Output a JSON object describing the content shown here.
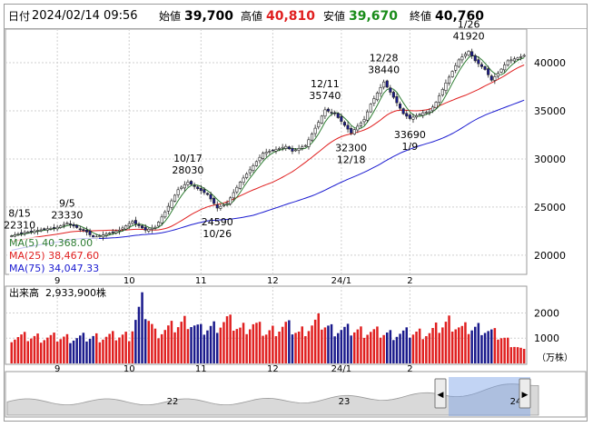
{
  "header": {
    "date_label": "日付",
    "datetime": "2024/02/14 09:56",
    "open_label": "始値",
    "open": "39,700",
    "high_label": "高値",
    "high": "40,810",
    "low_label": "安値",
    "low": "39,670",
    "close_label": "終値",
    "close": "40,760"
  },
  "colors": {
    "up_candle": "#ffffff",
    "down_candle": "#1a1a8c",
    "ma5": "#2e7d32",
    "ma25": "#e02020",
    "ma75": "#1a1ad0",
    "volume_up": "#e02020",
    "volume_down": "#1a1a8c",
    "high_value": "#e02020",
    "low_value": "#1a8c1a"
  },
  "chart_data": [
    {
      "type": "candlestick",
      "x_ticks": [
        "9",
        "10",
        "11",
        "12",
        "24/1",
        "2"
      ],
      "y_ticks": [
        "40000",
        "35000",
        "30000",
        "25000",
        "20000"
      ],
      "ylim": [
        18000,
        43500
      ],
      "legend": [
        {
          "name": "MA(5)",
          "value": "40,368.00"
        },
        {
          "name": "MA(25)",
          "value": "38,467.60"
        },
        {
          "name": "MA(75)",
          "value": "34,047.33"
        }
      ],
      "annotations": [
        {
          "text": "8/15",
          "value": "22310"
        },
        {
          "text": "9/5",
          "value": "23330"
        },
        {
          "text": "10/17",
          "value": "28030"
        },
        {
          "text": "10/26",
          "value": "24590"
        },
        {
          "text": "12/11",
          "value": "35740"
        },
        {
          "text": "12/18",
          "value": "32300"
        },
        {
          "text": "12/28",
          "value": "38440"
        },
        {
          "text": "1/9",
          "value": "33690"
        },
        {
          "text": "1/26",
          "value": "41920"
        }
      ],
      "anchors": [
        {
          "i": 0,
          "v": 22000
        },
        {
          "i": 3,
          "v": 22310
        },
        {
          "i": 14,
          "v": 22900
        },
        {
          "i": 17,
          "v": 23330
        },
        {
          "i": 23,
          "v": 22400
        },
        {
          "i": 25,
          "v": 21800
        },
        {
          "i": 33,
          "v": 22600
        },
        {
          "i": 37,
          "v": 23500
        },
        {
          "i": 41,
          "v": 22600
        },
        {
          "i": 44,
          "v": 22900
        },
        {
          "i": 47,
          "v": 24500
        },
        {
          "i": 51,
          "v": 26800
        },
        {
          "i": 54,
          "v": 27600
        },
        {
          "i": 57,
          "v": 26900
        },
        {
          "i": 60,
          "v": 26300
        },
        {
          "i": 63,
          "v": 24900
        },
        {
          "i": 66,
          "v": 25400
        },
        {
          "i": 70,
          "v": 27600
        },
        {
          "i": 74,
          "v": 29300
        },
        {
          "i": 77,
          "v": 30600
        },
        {
          "i": 80,
          "v": 30900
        },
        {
          "i": 84,
          "v": 31300
        },
        {
          "i": 86,
          "v": 30800
        },
        {
          "i": 90,
          "v": 31400
        },
        {
          "i": 94,
          "v": 33800
        },
        {
          "i": 96,
          "v": 35100
        },
        {
          "i": 99,
          "v": 34700
        },
        {
          "i": 102,
          "v": 33500
        },
        {
          "i": 104,
          "v": 32700
        },
        {
          "i": 108,
          "v": 34100
        },
        {
          "i": 110,
          "v": 35700
        },
        {
          "i": 114,
          "v": 38000
        },
        {
          "i": 117,
          "v": 36400
        },
        {
          "i": 120,
          "v": 34700
        },
        {
          "i": 122,
          "v": 34200
        },
        {
          "i": 126,
          "v": 34800
        },
        {
          "i": 128,
          "v": 34900
        },
        {
          "i": 130,
          "v": 35900
        },
        {
          "i": 133,
          "v": 37900
        },
        {
          "i": 137,
          "v": 40300
        },
        {
          "i": 140,
          "v": 41200
        },
        {
          "i": 142,
          "v": 40200
        },
        {
          "i": 145,
          "v": 39300
        },
        {
          "i": 147,
          "v": 38200
        },
        {
          "i": 149,
          "v": 38900
        },
        {
          "i": 152,
          "v": 40200
        },
        {
          "i": 155,
          "v": 40500
        },
        {
          "i": 157,
          "v": 40760
        }
      ]
    },
    {
      "type": "bar",
      "label": "出来高",
      "value": "2,933,900株",
      "unit": "（万株）",
      "y_ticks": [
        "2000",
        "1000"
      ],
      "ylim": [
        0,
        2700
      ],
      "x_ticks": [
        "9",
        "10",
        "11",
        "12",
        "24/1",
        "2"
      ],
      "anchors": [
        {
          "i": 0,
          "v": 1050
        },
        {
          "i": 20,
          "v": 1000
        },
        {
          "i": 36,
          "v": 1100
        },
        {
          "i": 40,
          "v": 2350
        },
        {
          "i": 44,
          "v": 1200
        },
        {
          "i": 50,
          "v": 1450
        },
        {
          "i": 54,
          "v": 1700
        },
        {
          "i": 58,
          "v": 1300
        },
        {
          "i": 62,
          "v": 1450
        },
        {
          "i": 66,
          "v": 1700
        },
        {
          "i": 70,
          "v": 1350
        },
        {
          "i": 74,
          "v": 1550
        },
        {
          "i": 78,
          "v": 1200
        },
        {
          "i": 84,
          "v": 1500
        },
        {
          "i": 88,
          "v": 1200
        },
        {
          "i": 94,
          "v": 1650
        },
        {
          "i": 98,
          "v": 1350
        },
        {
          "i": 104,
          "v": 1300
        },
        {
          "i": 110,
          "v": 1250
        },
        {
          "i": 116,
          "v": 1150
        },
        {
          "i": 122,
          "v": 1200
        },
        {
          "i": 128,
          "v": 1200
        },
        {
          "i": 134,
          "v": 1650
        },
        {
          "i": 138,
          "v": 1350
        },
        {
          "i": 144,
          "v": 1400
        },
        {
          "i": 150,
          "v": 1050
        },
        {
          "i": 157,
          "v": 480
        }
      ]
    }
  ],
  "navigator": {
    "labels": [
      "22",
      "23",
      "24"
    ],
    "left_handle": "◀",
    "right_handle": "▶"
  }
}
